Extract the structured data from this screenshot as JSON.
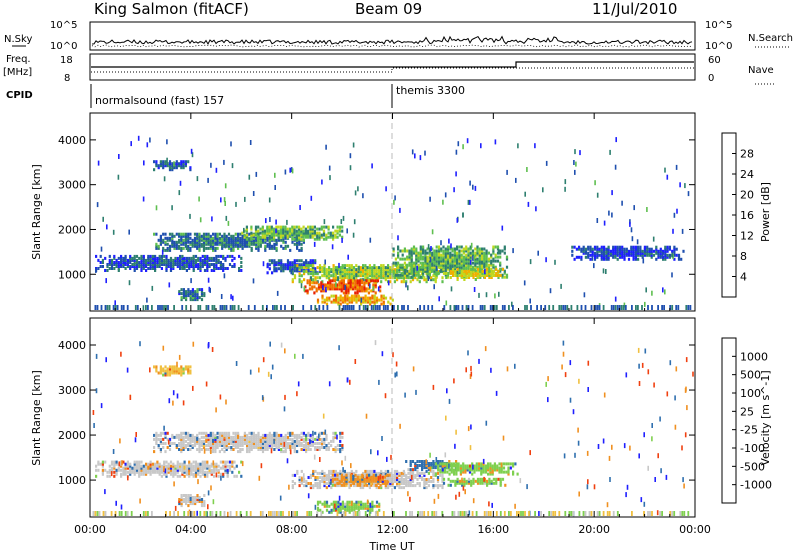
{
  "header": {
    "station": "King Salmon (fitACF)",
    "beam": "Beam 09",
    "date": "11/Jul/2010"
  },
  "top_panels": {
    "nsky_label": "N.Sky",
    "nsearch_label": "N.Search",
    "freq_label_line1": "Freq.",
    "freq_label_line2": "[MHz]",
    "nave_label": "Nave",
    "cpid_label": "CPID",
    "nsky_ticks": [
      "10^5",
      "10^0"
    ],
    "nsearch_ticks": [
      "10^5",
      "10^0"
    ],
    "freq_ticks": [
      "18",
      "8"
    ],
    "nave_ticks": [
      "60",
      "0"
    ],
    "cpid_segments": [
      {
        "label": "normalsound (fast) 157",
        "start_hour": 0,
        "end_hour": 12
      },
      {
        "label": "themis 3300",
        "start_hour": 12,
        "end_hour": 24
      }
    ]
  },
  "chart_data": [
    {
      "type": "heatmap",
      "title": "Power",
      "xlabel": "Time UT",
      "ylabel": "Slant Range [km]",
      "x_ticks": [
        "00:00",
        "04:00",
        "08:00",
        "12:00",
        "16:00",
        "20:00",
        "00:00"
      ],
      "x_range_hours": [
        0,
        24
      ],
      "y_ticks": [
        "1000",
        "2000",
        "3000",
        "4000"
      ],
      "ylim": [
        180,
        4600
      ],
      "colorbar_label": "Power [dB]",
      "colorbar_ticks": [
        "4",
        "8",
        "12",
        "16",
        "20",
        "24",
        "28"
      ],
      "colorbar_range": [
        0,
        32
      ],
      "colors": [
        "#1f1fff",
        "#1f4faf",
        "#2e7f6f",
        "#5fbf4f",
        "#c0d820",
        "#f0b000",
        "#f07000",
        "#e82000"
      ],
      "echo_regions": [
        {
          "t0": 0.2,
          "t1": 6.0,
          "r0": 1050,
          "r1": 1400,
          "value": 6
        },
        {
          "t0": 2.5,
          "t1": 8.5,
          "r0": 1500,
          "r1": 1900,
          "value": 9
        },
        {
          "t0": 6.0,
          "t1": 10.0,
          "r0": 1750,
          "r1": 2050,
          "value": 14
        },
        {
          "t0": 3.5,
          "t1": 4.5,
          "r0": 400,
          "r1": 650,
          "value": 8
        },
        {
          "t0": 7.0,
          "t1": 9.0,
          "r0": 1000,
          "r1": 1300,
          "value": 6
        },
        {
          "t0": 8.0,
          "t1": 14.0,
          "r0": 800,
          "r1": 1200,
          "value": 16
        },
        {
          "t0": 8.5,
          "t1": 11.5,
          "r0": 550,
          "r1": 850,
          "value": 28
        },
        {
          "t0": 9.0,
          "t1": 12.0,
          "r0": 300,
          "r1": 500,
          "value": 22
        },
        {
          "t0": 12.0,
          "t1": 16.5,
          "r0": 900,
          "r1": 1600,
          "value": 13
        },
        {
          "t0": 14.0,
          "t1": 16.5,
          "r0": 850,
          "r1": 1100,
          "value": 19
        },
        {
          "t0": 2.5,
          "t1": 4.0,
          "r0": 3300,
          "r1": 3500,
          "value": 7
        },
        {
          "t0": 19.0,
          "t1": 23.5,
          "r0": 1300,
          "r1": 1600,
          "value": 5
        }
      ]
    },
    {
      "type": "heatmap",
      "title": "Velocity",
      "xlabel": "Time UT",
      "ylabel": "Slant Range [km]",
      "x_ticks": [
        "00:00",
        "04:00",
        "08:00",
        "12:00",
        "16:00",
        "20:00",
        "00:00"
      ],
      "x_range_hours": [
        0,
        24
      ],
      "y_ticks": [
        "1000",
        "2000",
        "3000",
        "4000"
      ],
      "ylim": [
        180,
        4600
      ],
      "colorbar_label": "Velocity [m s^-1]",
      "colorbar_ticks": [
        "1000",
        "500",
        "100",
        "25",
        "-25",
        "-100",
        "-500",
        "-1000"
      ],
      "colors": [
        "#1f1fff",
        "#2f6faf",
        "#3f9f5f",
        "#7fd04f",
        "#c8c8c8",
        "#f0c040",
        "#f09020",
        "#f04010",
        "#e80000"
      ],
      "echo_regions": [
        {
          "t0": 0.2,
          "t1": 6.0,
          "r0": 1050,
          "r1": 1400,
          "value": 0
        },
        {
          "t0": 2.5,
          "t1": 10.0,
          "r0": 1600,
          "r1": 2050,
          "value": 0
        },
        {
          "t0": 3.5,
          "t1": 4.5,
          "r0": 400,
          "r1": 650,
          "value": 0
        },
        {
          "t0": 8.0,
          "t1": 14.0,
          "r0": 800,
          "r1": 1200,
          "value": 0
        },
        {
          "t0": 9.5,
          "t1": 12.0,
          "r0": 850,
          "r1": 1100,
          "value": -150
        },
        {
          "t0": 12.5,
          "t1": 14.5,
          "r0": 1200,
          "r1": 1400,
          "value": 300
        },
        {
          "t0": 13.5,
          "t1": 17.0,
          "r0": 1100,
          "r1": 1350,
          "value": 80
        },
        {
          "t0": 14.0,
          "t1": 16.5,
          "r0": 850,
          "r1": 1000,
          "value": 60
        },
        {
          "t0": 2.5,
          "t1": 4.0,
          "r0": 3300,
          "r1": 3500,
          "value": -60
        },
        {
          "t0": 9.0,
          "t1": 11.5,
          "r0": 250,
          "r1": 500,
          "value": 60
        }
      ]
    }
  ]
}
